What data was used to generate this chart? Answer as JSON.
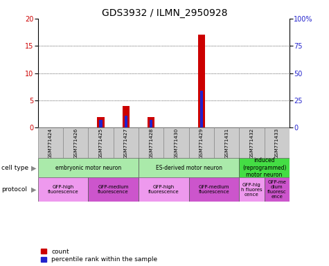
{
  "title": "GDS3932 / ILMN_2950928",
  "samples": [
    "GSM771424",
    "GSM771426",
    "GSM771425",
    "GSM771427",
    "GSM771428",
    "GSM771430",
    "GSM771429",
    "GSM771431",
    "GSM771432",
    "GSM771433"
  ],
  "count_values": [
    0,
    0,
    2,
    4,
    2,
    0,
    17,
    0,
    0,
    0
  ],
  "percentile_values": [
    0,
    0,
    7,
    11,
    7,
    0,
    34,
    0,
    0,
    0
  ],
  "ylim_left": [
    0,
    20
  ],
  "ylim_right": [
    0,
    100
  ],
  "yticks_left": [
    0,
    5,
    10,
    15,
    20
  ],
  "yticks_right": [
    0,
    25,
    50,
    75,
    100
  ],
  "ytick_labels_right": [
    "0",
    "25",
    "50",
    "75",
    "100%"
  ],
  "bar_color_count": "#cc0000",
  "bar_color_percentile": "#2222cc",
  "bar_width": 0.28,
  "sample_bg_color": "#cccccc",
  "legend_count_label": "count",
  "legend_percentile_label": "percentile rank within the sample",
  "title_fontsize": 10,
  "tick_fontsize": 7,
  "cell_type_groups": [
    {
      "label": "embryonic motor neuron",
      "start": 0,
      "end": 3,
      "color": "#aaeaaa"
    },
    {
      "label": "ES-derived motor neuron",
      "start": 4,
      "end": 7,
      "color": "#aaeaaa"
    },
    {
      "label": "induced\n(reprogrammed)\nmotor neuron",
      "start": 8,
      "end": 9,
      "color": "#44dd44"
    }
  ],
  "protocol_groups": [
    {
      "label": "GFP-high\nfluorescence",
      "start": 0,
      "end": 1,
      "color": "#ee99ee"
    },
    {
      "label": "GFP-medium\nfluorescence",
      "start": 2,
      "end": 3,
      "color": "#cc55cc"
    },
    {
      "label": "GFP-high\nfluorescence",
      "start": 4,
      "end": 5,
      "color": "#ee99ee"
    },
    {
      "label": "GFP-medium\nfluorescence",
      "start": 6,
      "end": 7,
      "color": "#cc55cc"
    },
    {
      "label": "GFP-hig\nh fluores\ncence",
      "start": 8,
      "end": 8,
      "color": "#ee99ee"
    },
    {
      "label": "GFP-me\ndium\nfluoresc\nence",
      "start": 9,
      "end": 9,
      "color": "#cc55cc"
    }
  ]
}
